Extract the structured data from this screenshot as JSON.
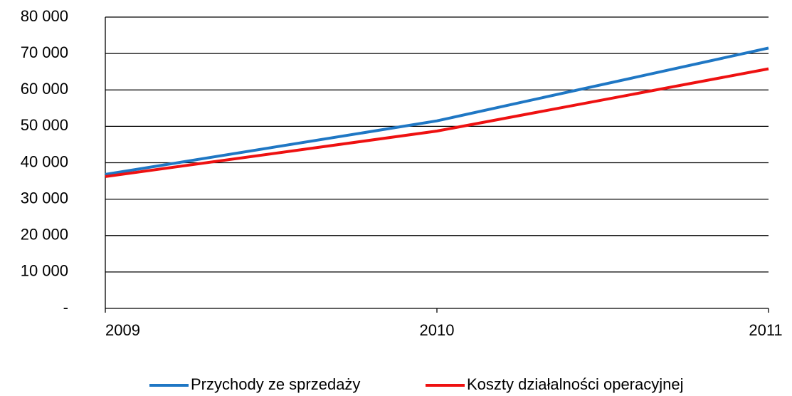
{
  "chart_data": {
    "type": "line",
    "x": [
      2009,
      2010,
      2011
    ],
    "xlim": [
      2009,
      2011
    ],
    "xticks": [
      2009,
      2010,
      2011
    ],
    "ylim": [
      0,
      80000
    ],
    "yticks": [
      {
        "value": 0,
        "label": "-"
      },
      {
        "value": 10000,
        "label": "10 000"
      },
      {
        "value": 20000,
        "label": "20 000"
      },
      {
        "value": 30000,
        "label": "30 000"
      },
      {
        "value": 40000,
        "label": "40 000"
      },
      {
        "value": 50000,
        "label": "50 000"
      },
      {
        "value": 60000,
        "label": "60 000"
      },
      {
        "value": 70000,
        "label": "70 000"
      },
      {
        "value": 80000,
        "label": "80 000"
      }
    ],
    "grid": true,
    "legend": "bottom",
    "series": [
      {
        "name": "Przychody ze sprzedaży",
        "color": "#1f77c4",
        "values": [
          36800,
          51500,
          71500
        ]
      },
      {
        "name": "Koszty działalności operacyjnej",
        "color": "#ee1111",
        "values": [
          36200,
          48700,
          65800
        ]
      }
    ]
  }
}
